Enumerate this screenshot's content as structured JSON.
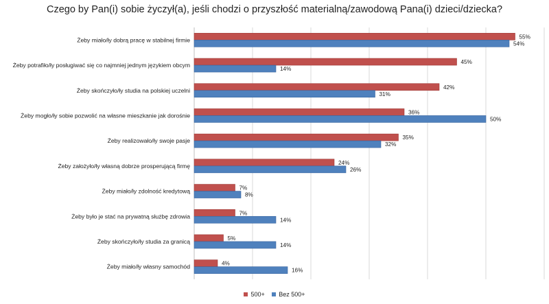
{
  "title": "Czego by Pan(i) sobie życzył(a), jeśli chodzi o przyszłość materialną/zawodową Pana(i) dzieci/dziecka?",
  "colors": {
    "series_500": "#c0504d",
    "series_bez": "#4f81bd",
    "grid": "#d9d9d9",
    "axis": "#bfbfbf"
  },
  "chart_data": {
    "type": "bar",
    "orientation": "horizontal",
    "title": "Czego by Pan(i) sobie życzył(a), jeśli chodzi o przyszłość materialną/zawodową Pana(i) dzieci/dziecka?",
    "categories": [
      "Żeby miało/ły dobrą pracę w stabilnej firmie",
      "Żeby potrafiło/ły posługiwać się co najmniej jednym językiem obcym",
      "Żeby skończyło/ły studia na polskiej uczelni",
      "Żeby mogło/ły sobie pozwolić na własne mieszkanie jak dorośnie",
      "Żeby realizowało/ły swoje pasje",
      "Żeby założyło/ły własną dobrze prosperującą firmę",
      "Żeby miało/ły zdolność kredytową",
      "Żeby było je stać na prywatną służbę zdrowia",
      "Żeby skończyło/ły studia za granicą",
      "Żeby miało/ły własny samochód"
    ],
    "series": [
      {
        "name": "500+",
        "values": [
          55,
          45,
          42,
          36,
          35,
          24,
          7,
          7,
          5,
          4
        ]
      },
      {
        "name": "Bez 500+",
        "values": [
          54,
          14,
          31,
          50,
          32,
          26,
          8,
          14,
          14,
          16
        ]
      }
    ],
    "value_suffix": "%",
    "xlim": [
      0,
      60
    ],
    "grid": true,
    "legend_position": "bottom"
  }
}
